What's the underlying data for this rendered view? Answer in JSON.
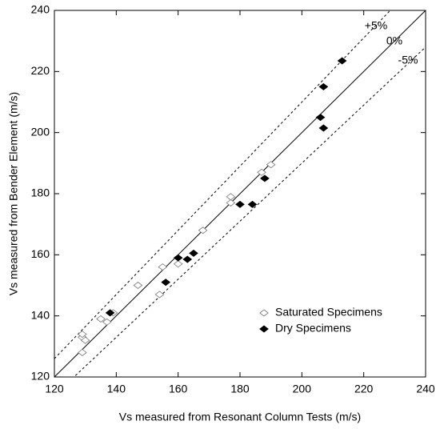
{
  "chart_data": {
    "type": "scatter",
    "x_label": "Vs measured from Resonant Column Tests (m/s)",
    "y_label": "Vs measured from Bender Element (m/s)",
    "xlim": [
      120,
      240
    ],
    "ylim": [
      120,
      240
    ],
    "xticks": [
      120,
      140,
      160,
      180,
      200,
      220,
      240
    ],
    "yticks": [
      120,
      140,
      160,
      180,
      200,
      220,
      240
    ],
    "legend": "lower right",
    "reference_lines": [
      {
        "label": "+5%",
        "percent": 5
      },
      {
        "label": "0%",
        "percent": 0
      },
      {
        "label": "-5%",
        "percent": -5
      }
    ],
    "series": [
      {
        "name": "Saturated Specimens",
        "color": "#ffffff",
        "x": [
          129,
          130,
          129,
          129,
          135,
          137,
          139,
          147,
          154,
          155,
          160,
          168,
          177,
          177,
          187,
          190
        ],
        "values": [
          133,
          132,
          128,
          134,
          139,
          138,
          141,
          150,
          147,
          156,
          157,
          168,
          177,
          179,
          187,
          189.5
        ]
      },
      {
        "name": "Dry Specimens",
        "color": "#000000",
        "x": [
          138,
          156,
          160,
          163,
          165,
          180,
          184,
          188,
          206,
          207,
          207,
          213
        ],
        "values": [
          141,
          151,
          159,
          158.5,
          160.5,
          176.5,
          176.5,
          185,
          205,
          201.5,
          215,
          223.5
        ]
      }
    ]
  }
}
